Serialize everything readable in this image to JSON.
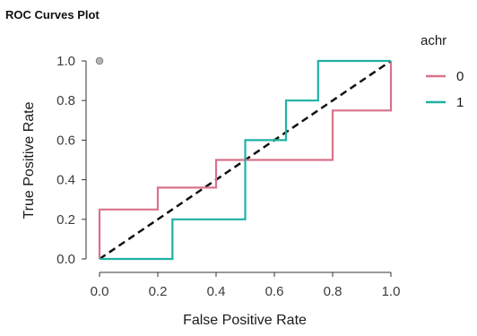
{
  "chart_data": {
    "type": "line",
    "title": "ROC Curves Plot",
    "xlabel": "False Positive Rate",
    "ylabel": "True Positive Rate",
    "xlim": [
      0,
      1
    ],
    "ylim": [
      0,
      1
    ],
    "x_ticks": [
      "0.0",
      "0.2",
      "0.4",
      "0.6",
      "0.8",
      "1.0"
    ],
    "y_ticks": [
      "0.0",
      "0.2",
      "0.4",
      "0.6",
      "0.8",
      "1.0"
    ],
    "grid": false,
    "legend": {
      "title": "achr",
      "position": "right"
    },
    "series": [
      {
        "name": "0",
        "color": "#d9728a",
        "points": [
          [
            0,
            0
          ],
          [
            0,
            0.25
          ],
          [
            0.2,
            0.25
          ],
          [
            0.2,
            0.36
          ],
          [
            0.4,
            0.36
          ],
          [
            0.4,
            0.5
          ],
          [
            0.8,
            0.5
          ],
          [
            0.8,
            0.75
          ],
          [
            1.0,
            0.75
          ],
          [
            1.0,
            1.0
          ]
        ]
      },
      {
        "name": "1",
        "color": "#1fb1a2",
        "points": [
          [
            0,
            0
          ],
          [
            0.25,
            0
          ],
          [
            0.25,
            0.2
          ],
          [
            0.5,
            0.2
          ],
          [
            0.5,
            0.6
          ],
          [
            0.64,
            0.6
          ],
          [
            0.64,
            0.8
          ],
          [
            0.75,
            0.8
          ],
          [
            0.75,
            1.0
          ],
          [
            1.0,
            1.0
          ]
        ]
      }
    ],
    "reference_line": {
      "from": [
        0,
        0
      ],
      "to": [
        1,
        1
      ],
      "style": "dashed",
      "color": "#111111"
    },
    "markers": [
      {
        "x": 0,
        "y": 1,
        "color": "#b3b3b3"
      }
    ]
  }
}
